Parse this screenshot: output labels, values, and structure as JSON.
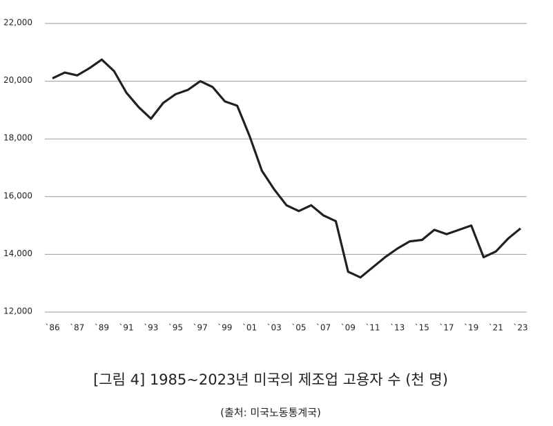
{
  "chart_data": {
    "type": "line",
    "title": "[그림 4] 1985~2023년 미국의 제조업 고용자 수 (천 명)",
    "subtitle": "(출처: 미국노동통계국)",
    "categories": [
      "`86",
      null,
      "`87",
      null,
      "`89",
      null,
      "`91",
      null,
      "`93",
      null,
      "`95",
      null,
      "`97",
      null,
      "`99",
      null,
      "`01",
      null,
      "`03",
      null,
      "`05",
      null,
      "`07",
      null,
      "`09",
      null,
      "`11",
      null,
      "`13",
      null,
      "`15",
      null,
      "`17",
      null,
      "`19",
      null,
      "`21",
      null,
      "`23"
    ],
    "values": [
      20100,
      20300,
      20200,
      20450,
      20750,
      20350,
      19600,
      19100,
      18700,
      19250,
      19550,
      19700,
      20000,
      19800,
      19300,
      19150,
      18100,
      16900,
      16250,
      15700,
      15500,
      15700,
      15350,
      15150,
      13400,
      13200,
      13550,
      13900,
      14200,
      14450,
      14500,
      14850,
      14700,
      14850,
      15000,
      13900,
      14100,
      14550,
      14900
    ],
    "color": "#231f20",
    "ylim": [
      12000,
      22000
    ],
    "yticks": [
      {
        "value": 12000,
        "label": "12,000"
      },
      {
        "value": 14000,
        "label": "14,000"
      },
      {
        "value": 16000,
        "label": "16,000"
      },
      {
        "value": 18000,
        "label": "18,000"
      },
      {
        "value": 20000,
        "label": "20,000"
      },
      {
        "value": 22000,
        "label": "22,000"
      }
    ],
    "grid": true
  }
}
